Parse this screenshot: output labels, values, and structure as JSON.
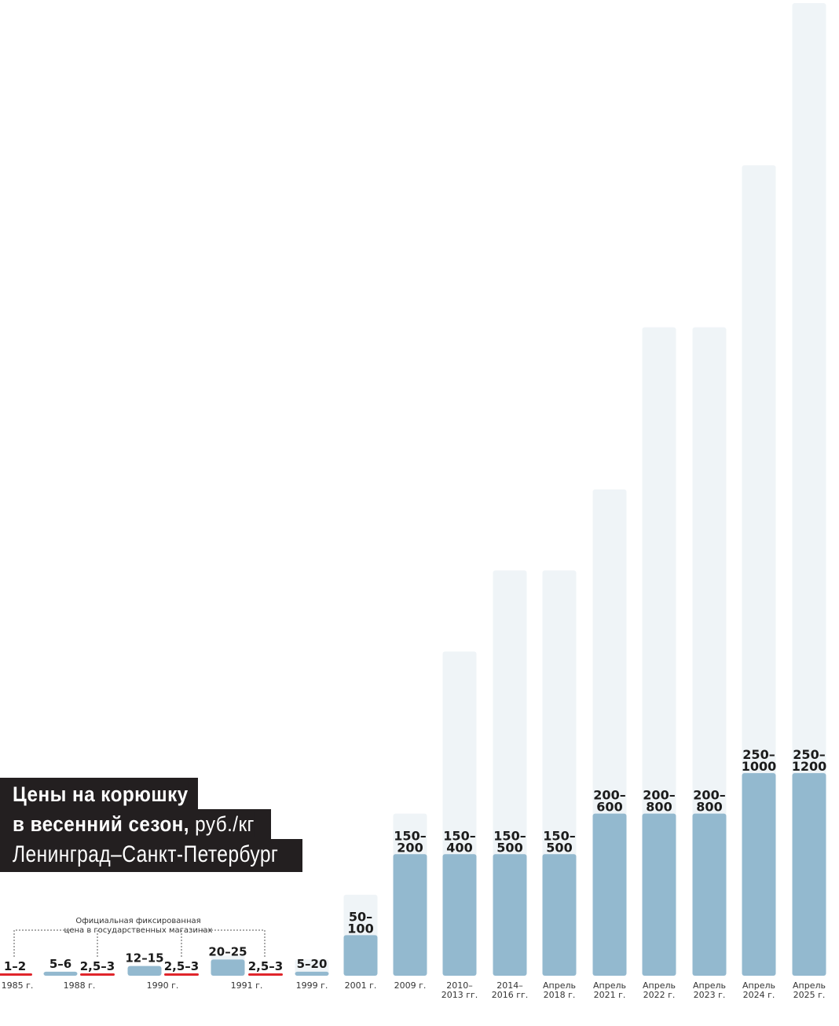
{
  "title": {
    "line1": "Цены на корюшку",
    "line2_bold": "в весенний сезон,",
    "line2_unit": " руб./кг",
    "line3": "Ленинград–Санкт-Петербург"
  },
  "annotation": {
    "line1": "Официальная фиксированная",
    "line2": "цена в государственных магазинах"
  },
  "colors": {
    "bar_min": "#93b9cf",
    "bar_range": "#eff4f7",
    "official_price": "#e0252b",
    "label": "#1b1b1b"
  },
  "chart_data": {
    "type": "bar",
    "description_of_bars": "each bar: lower part = minimum price, pale extension = maximum price",
    "ylim": [
      0,
      1200
    ],
    "groups": [
      {
        "label": "1985 г.",
        "bars": [
          {
            "min": 1,
            "max": 2,
            "label": "1–2",
            "official": true
          }
        ]
      },
      {
        "label": "1988 г.",
        "bars": [
          {
            "min": 5,
            "max": 6,
            "label": "5–6",
            "official": false
          },
          {
            "min": 2.5,
            "max": 3,
            "label": "2,5–3",
            "official": true
          }
        ]
      },
      {
        "label": "1990 г.",
        "bars": [
          {
            "min": 12,
            "max": 15,
            "label": "12–15",
            "official": false
          },
          {
            "min": 2.5,
            "max": 3,
            "label": "2,5–3",
            "official": true
          }
        ]
      },
      {
        "label": "1991 г.",
        "bars": [
          {
            "min": 20,
            "max": 25,
            "label": "20–25",
            "official": false
          },
          {
            "min": 2.5,
            "max": 3,
            "label": "2,5–3",
            "official": true
          }
        ]
      },
      {
        "label": "1999 г.",
        "bars": [
          {
            "min": 5,
            "max": 20,
            "label": "5–20",
            "official": false
          }
        ]
      },
      {
        "label": "2001 г.",
        "bars": [
          {
            "min": 50,
            "max": 100,
            "label": "50–\n100",
            "official": false
          }
        ]
      },
      {
        "label": "2009 г.",
        "bars": [
          {
            "min": 150,
            "max": 200,
            "label": "150–\n200",
            "official": false
          }
        ]
      },
      {
        "label": "2010–\n2013 гг.",
        "bars": [
          {
            "min": 150,
            "max": 400,
            "label": "150–\n400",
            "official": false
          }
        ]
      },
      {
        "label": "2014–\n2016 гг.",
        "bars": [
          {
            "min": 150,
            "max": 500,
            "label": "150–\n500",
            "official": false
          }
        ]
      },
      {
        "label": "Апрель\n2018 г.",
        "bars": [
          {
            "min": 150,
            "max": 500,
            "label": "150–\n500",
            "official": false
          }
        ]
      },
      {
        "label": "Апрель\n2021 г.",
        "bars": [
          {
            "min": 200,
            "max": 600,
            "label": "200–\n600",
            "official": false
          }
        ]
      },
      {
        "label": "Апрель\n2022 г.",
        "bars": [
          {
            "min": 200,
            "max": 800,
            "label": "200–\n800",
            "official": false
          }
        ]
      },
      {
        "label": "Апрель\n2023 г.",
        "bars": [
          {
            "min": 200,
            "max": 800,
            "label": "200–\n800",
            "official": false
          }
        ]
      },
      {
        "label": "Апрель\n2024 г.",
        "bars": [
          {
            "min": 250,
            "max": 1000,
            "label": "250–\n1000",
            "official": false
          }
        ]
      },
      {
        "label": "Апрель\n2025 г.",
        "bars": [
          {
            "min": 250,
            "max": 1200,
            "label": "250–\n1200",
            "official": false
          }
        ]
      }
    ]
  }
}
